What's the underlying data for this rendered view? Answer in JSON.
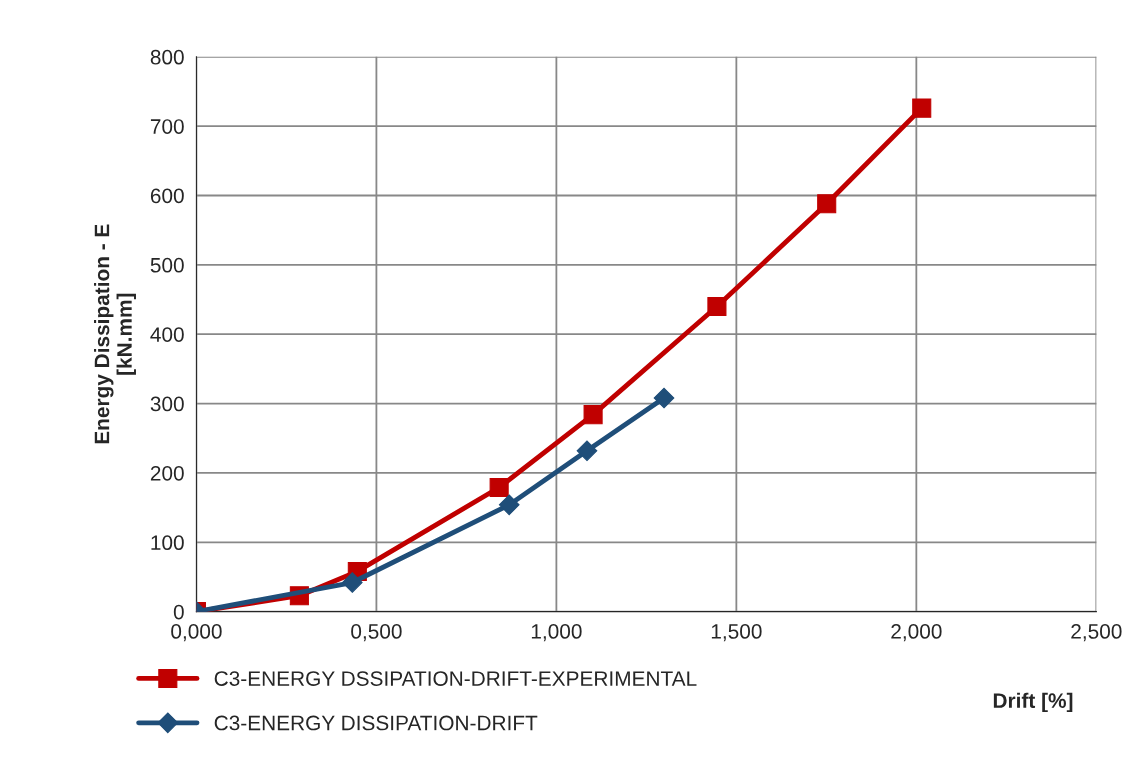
{
  "chart_data": {
    "type": "line",
    "xlabel": "Drift [%]",
    "ylabel": "Energy Dissipation - E\n[kN.mm]",
    "xlim": [
      0,
      2.5
    ],
    "xticks": [
      {
        "value": 0,
        "label": "0,000"
      },
      {
        "value": 0.5,
        "label": "0,500"
      },
      {
        "value": 1,
        "label": "1,000"
      },
      {
        "value": 1.5,
        "label": "1,500"
      },
      {
        "value": 2,
        "label": "2,000"
      },
      {
        "value": 2.5,
        "label": "2,500"
      }
    ],
    "ylim": [
      0,
      800
    ],
    "yticks": [
      0,
      100,
      200,
      300,
      400,
      500,
      600,
      700,
      800
    ],
    "grid": true,
    "legend": "bottom",
    "line_style": "solid",
    "series": [
      {
        "name": "C3-ENERGY DSSIPATION-DRIFT-EXPERIMENTAL",
        "color": "#c00000",
        "marker": "square",
        "x": [
          0,
          0.286,
          0.447,
          0.841,
          1.102,
          1.446,
          1.751,
          2.015
        ],
        "values": [
          0,
          23,
          58,
          179,
          284,
          440,
          588,
          726
        ]
      },
      {
        "name": "C3-ENERGY DISSIPATION-DRIFT",
        "color": "#1f4e79",
        "marker": "diamond",
        "x": [
          0,
          0.433,
          0.869,
          1.085,
          1.299
        ],
        "values": [
          0,
          42,
          154,
          232,
          308
        ]
      }
    ]
  }
}
